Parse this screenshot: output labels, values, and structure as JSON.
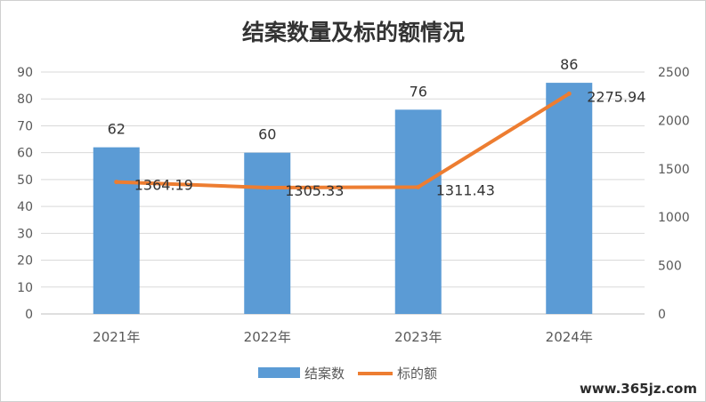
{
  "chart_data": {
    "type": "bar+line",
    "title": "结案数量及标的额情况",
    "categories": [
      "2021年",
      "2022年",
      "2023年",
      "2024年"
    ],
    "series": [
      {
        "name": "结案数",
        "type": "bar",
        "axis": "left",
        "color": "#5b9bd5",
        "values": [
          62,
          60,
          76,
          86
        ]
      },
      {
        "name": "标的额",
        "type": "line",
        "axis": "right",
        "color": "#ed7d31",
        "values": [
          1364.19,
          1305.33,
          1311.43,
          2275.94
        ]
      }
    ],
    "y_left": {
      "min": 0,
      "max": 90,
      "step": 10
    },
    "y_right": {
      "min": 0,
      "max": 2500,
      "step": 500
    },
    "grid": true,
    "legend_position": "bottom"
  },
  "watermark": "www.365jz.com"
}
